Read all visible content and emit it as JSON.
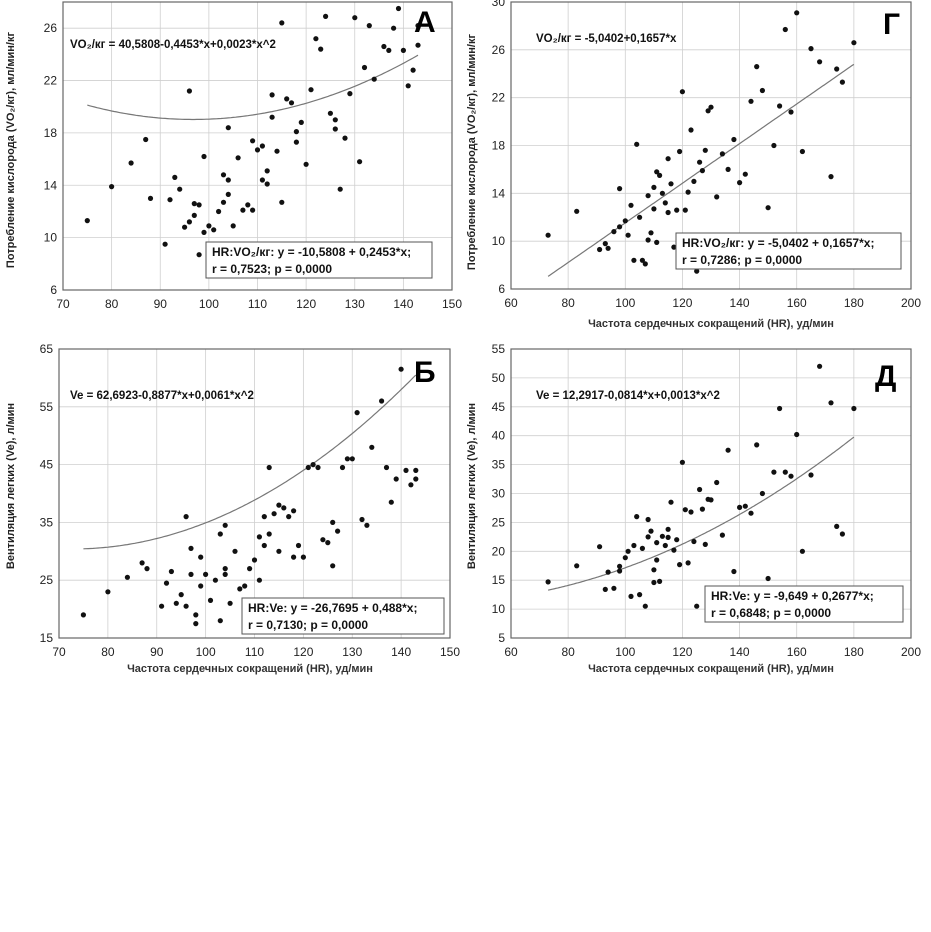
{
  "charts": [
    {
      "id": "A",
      "letter": "А",
      "ylabel": "Потребление кислорода (VO₂/кг), мл/мин/кг",
      "xlabel": "",
      "equation": "VO₂/кг = 40,5808-0,4453*x+0,0023*x^2",
      "stat_line1": "HR:VO₂/кг: y = -10,5808 + 0,2453*x;",
      "stat_line2": "r = 0,7523; p = 0,0000",
      "xticks": [
        "70",
        "80",
        "90",
        "100",
        "110",
        "120",
        "130",
        "140",
        "150"
      ],
      "yticks": [
        "6",
        "10",
        "14",
        "18",
        "22",
        "26"
      ]
    },
    {
      "id": "G",
      "letter": "Г",
      "ylabel": "Потребление кислорода (VO₂/кг), мл/мин/кг",
      "xlabel": "Частота сердечных сокращений (HR), уд/мин",
      "equation": "VO₂/кг = -5,0402+0,1657*x",
      "stat_line1": "HR:VO₂/кг: y = -5,0402 + 0,1657*x;",
      "stat_line2": "r = 0,7286; p = 0,0000",
      "xticks": [
        "60",
        "80",
        "100",
        "120",
        "140",
        "160",
        "180",
        "200"
      ],
      "yticks": [
        "6",
        "10",
        "14",
        "18",
        "22",
        "26",
        "30"
      ]
    },
    {
      "id": "B",
      "letter": "Б",
      "ylabel": "Вентиляция легких (Ve), л/мин",
      "xlabel": "Частота сердечных сокращений (HR), уд/мин",
      "equation": "Ve = 62,6923-0,8877*x+0,0061*x^2",
      "stat_line1": "HR:Ve: y = -26,7695 + 0,488*x;",
      "stat_line2": "r = 0,7130; p = 0,0000",
      "xticks": [
        "70",
        "80",
        "90",
        "100",
        "110",
        "120",
        "130",
        "140",
        "150"
      ],
      "yticks": [
        "15",
        "25",
        "35",
        "45",
        "55",
        "65"
      ]
    },
    {
      "id": "D",
      "letter": "Д",
      "ylabel": "Вентиляция легких (Ve), л/мин",
      "xlabel": "Частота сердечных сокращений (HR), уд/мин",
      "equation": "Ve = 12,2917-0,0814*x+0,0013*x^2",
      "stat_line1": "HR:Ve: y = -9,649 + 0,2677*x;",
      "stat_line2": "r = 0,6848; p = 0,0000",
      "xticks": [
        "60",
        "80",
        "100",
        "120",
        "140",
        "160",
        "180",
        "200"
      ],
      "yticks": [
        "5",
        "10",
        "15",
        "20",
        "25",
        "30",
        "35",
        "40",
        "45",
        "50",
        "55"
      ]
    }
  ],
  "chart_data": [
    {
      "type": "scatter",
      "title": "А",
      "xlabel": "",
      "ylabel": "Потребление кислорода (VO₂/кг), мл/мин/кг",
      "xlim": [
        70,
        150
      ],
      "ylim": [
        6,
        28
      ],
      "fit": {
        "kind": "quadratic",
        "a": 40.5808,
        "b": -0.4453,
        "c": 0.0023,
        "xrange": [
          75,
          143
        ]
      },
      "x": [
        75,
        80,
        84,
        87,
        88,
        91,
        92,
        93,
        94,
        95,
        96,
        96,
        97,
        97,
        98,
        98,
        99,
        99,
        100,
        101,
        102,
        103,
        103,
        104,
        104,
        104,
        105,
        106,
        107,
        108,
        109,
        109,
        110,
        111,
        111,
        112,
        112,
        113,
        113,
        114,
        115,
        115,
        116,
        117,
        118,
        118,
        119,
        120,
        121,
        122,
        123,
        124,
        125,
        126,
        126,
        127,
        128,
        129,
        130,
        131,
        132,
        133,
        134,
        136,
        137,
        138,
        139,
        140,
        141,
        142,
        143,
        143
      ],
      "y": [
        11.3,
        13.9,
        15.7,
        17.5,
        13.0,
        9.5,
        12.9,
        14.6,
        13.7,
        10.8,
        21.2,
        11.2,
        11.7,
        12.6,
        12.5,
        8.7,
        10.4,
        16.2,
        10.9,
        10.6,
        12.0,
        14.8,
        12.7,
        13.3,
        14.4,
        18.4,
        10.9,
        16.1,
        12.1,
        12.5,
        17.4,
        12.1,
        16.7,
        14.4,
        17.0,
        14.1,
        15.1,
        19.2,
        20.9,
        16.6,
        12.7,
        26.4,
        20.6,
        20.3,
        17.3,
        18.1,
        18.8,
        15.6,
        21.3,
        25.2,
        24.4,
        26.9,
        19.5,
        19.0,
        18.3,
        13.7,
        17.6,
        21.0,
        26.8,
        15.8,
        23.0,
        26.2,
        22.1,
        24.6,
        24.3,
        26.0,
        27.5,
        24.3,
        21.6,
        22.8,
        24.7,
        26.2
      ]
    },
    {
      "type": "scatter",
      "title": "Г",
      "xlabel": "Частота сердечных сокращений (HR), уд/мин",
      "ylabel": "Потребление кислорода (VO₂/кг), мл/мин/кг",
      "xlim": [
        60,
        200
      ],
      "ylim": [
        6,
        30
      ],
      "fit": {
        "kind": "linear",
        "a": -5.0402,
        "b": 0.1657,
        "xrange": [
          73,
          180
        ]
      },
      "x": [
        73,
        83,
        91,
        93,
        94,
        96,
        98,
        98,
        100,
        101,
        102,
        103,
        104,
        105,
        106,
        107,
        108,
        108,
        109,
        110,
        110,
        111,
        111,
        112,
        113,
        114,
        115,
        115,
        116,
        117,
        118,
        119,
        120,
        121,
        122,
        123,
        124,
        125,
        126,
        127,
        128,
        129,
        130,
        132,
        134,
        136,
        138,
        140,
        142,
        144,
        146,
        148,
        150,
        152,
        154,
        156,
        158,
        160,
        162,
        165,
        168,
        172,
        174,
        176,
        180
      ],
      "y": [
        10.5,
        12.5,
        9.3,
        9.8,
        9.4,
        10.8,
        11.2,
        14.4,
        11.7,
        10.5,
        13.0,
        8.4,
        18.1,
        12.0,
        8.4,
        8.1,
        13.8,
        10.1,
        10.7,
        12.7,
        14.5,
        15.8,
        9.9,
        15.5,
        14.0,
        13.2,
        12.4,
        16.9,
        14.8,
        9.5,
        12.6,
        17.5,
        22.5,
        12.6,
        14.1,
        19.3,
        15.0,
        7.5,
        16.6,
        15.9,
        17.6,
        20.9,
        21.2,
        13.7,
        17.3,
        16.0,
        18.5,
        14.9,
        15.6,
        21.7,
        24.6,
        22.6,
        12.8,
        18.0,
        21.3,
        27.7,
        20.8,
        29.1,
        17.5,
        26.1,
        25.0,
        15.4,
        24.4,
        23.3,
        26.6
      ]
    },
    {
      "type": "scatter",
      "title": "Б",
      "xlabel": "Частота сердечных сокращений (HR), уд/мин",
      "ylabel": "Вентиляция легких (Ve), л/мин",
      "xlim": [
        70,
        150
      ],
      "ylim": [
        15,
        65
      ],
      "fit": {
        "kind": "quadratic",
        "a": 62.6923,
        "b": -0.8877,
        "c": 0.0061,
        "xrange": [
          75,
          143
        ]
      },
      "x": [
        75,
        80,
        84,
        87,
        88,
        91,
        92,
        93,
        94,
        95,
        96,
        96,
        97,
        97,
        98,
        98,
        99,
        99,
        100,
        101,
        102,
        103,
        103,
        104,
        104,
        104,
        105,
        106,
        107,
        108,
        109,
        109,
        110,
        111,
        111,
        112,
        112,
        113,
        113,
        114,
        115,
        115,
        116,
        117,
        118,
        118,
        119,
        120,
        121,
        122,
        123,
        124,
        125,
        126,
        126,
        127,
        128,
        129,
        130,
        131,
        132,
        133,
        134,
        136,
        137,
        138,
        139,
        140,
        141,
        142,
        143,
        143
      ],
      "y": [
        19.0,
        23.0,
        25.5,
        28.0,
        27.0,
        20.5,
        24.5,
        26.5,
        21.0,
        22.5,
        36.0,
        20.5,
        26.0,
        30.5,
        17.5,
        19.0,
        24.0,
        29.0,
        26.0,
        21.5,
        25.0,
        33.0,
        18.0,
        26.0,
        34.5,
        27.0,
        21.0,
        30.0,
        23.5,
        24.0,
        27.0,
        17.5,
        28.5,
        25.0,
        32.5,
        31.0,
        36.0,
        44.5,
        33.0,
        36.5,
        30.0,
        38.0,
        37.5,
        36.0,
        29.0,
        37.0,
        31.0,
        29.0,
        44.5,
        45.0,
        44.5,
        32.0,
        31.5,
        27.5,
        35.0,
        33.5,
        44.5,
        46.0,
        46.0,
        54.0,
        35.5,
        34.5,
        48.0,
        56.0,
        44.5,
        38.5,
        42.5,
        61.5,
        44.0,
        41.5,
        42.5,
        44.0
      ]
    },
    {
      "type": "scatter",
      "title": "Д",
      "xlabel": "Частота сердечных сокращений (HR), уд/мин",
      "ylabel": "Вентиляция легких (Ve), л/мин",
      "xlim": [
        60,
        200
      ],
      "ylim": [
        5,
        55
      ],
      "fit": {
        "kind": "quadratic",
        "a": 12.2917,
        "b": -0.0814,
        "c": 0.0013,
        "xrange": [
          73,
          180
        ]
      },
      "x": [
        73,
        83,
        91,
        93,
        94,
        96,
        98,
        98,
        100,
        101,
        102,
        103,
        104,
        105,
        106,
        107,
        108,
        108,
        109,
        110,
        110,
        111,
        111,
        112,
        113,
        114,
        115,
        115,
        116,
        117,
        118,
        119,
        120,
        121,
        122,
        123,
        124,
        125,
        126,
        127,
        128,
        129,
        130,
        132,
        134,
        136,
        138,
        140,
        142,
        144,
        146,
        148,
        150,
        152,
        154,
        156,
        158,
        160,
        162,
        165,
        168,
        172,
        174,
        176,
        180
      ],
      "y": [
        14.7,
        17.5,
        20.8,
        13.4,
        16.4,
        13.6,
        17.4,
        16.6,
        18.9,
        20.0,
        12.2,
        21.0,
        26.0,
        12.5,
        20.5,
        10.5,
        25.5,
        22.5,
        23.5,
        16.8,
        14.6,
        18.5,
        21.5,
        14.8,
        22.6,
        21.0,
        23.8,
        22.4,
        28.5,
        20.2,
        22.0,
        17.7,
        35.4,
        27.2,
        18.0,
        26.8,
        21.7,
        10.5,
        30.7,
        27.3,
        21.2,
        29.0,
        28.9,
        31.9,
        22.8,
        37.5,
        16.5,
        27.6,
        27.8,
        26.6,
        38.4,
        30.0,
        15.3,
        33.7,
        44.7,
        33.7,
        33.0,
        40.2,
        20.0,
        33.2,
        52.0,
        45.7,
        24.3,
        23.0,
        44.7
      ]
    }
  ]
}
